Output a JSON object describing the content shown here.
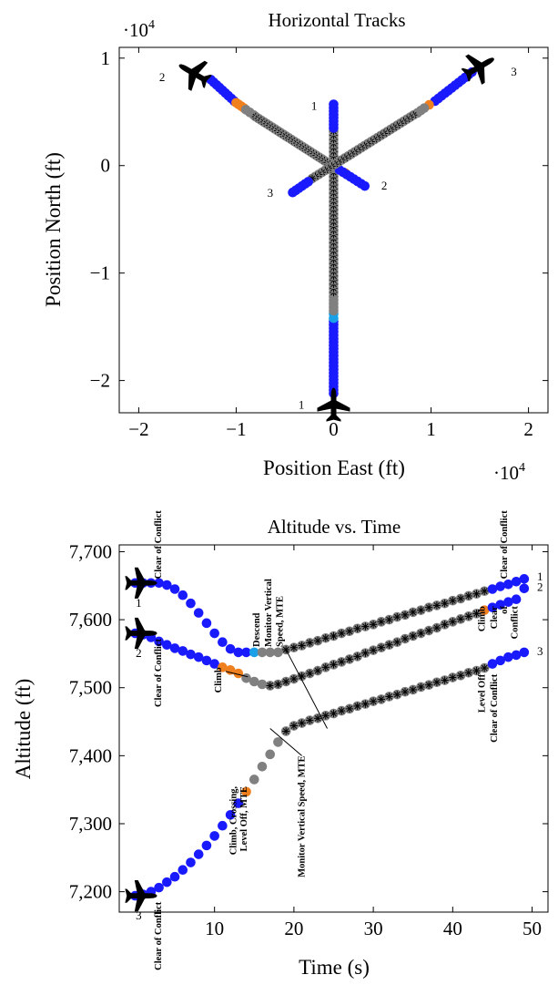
{
  "colors": {
    "clear": "#1a1aff",
    "advisory": "#f07f1e",
    "monitor": "#808080",
    "descend": "#1aa0e6",
    "marker": "#000000",
    "axis": "#000000"
  },
  "chart_data": [
    {
      "type": "scatter",
      "title": "Horizontal Tracks",
      "xlabel": "Position East (ft)",
      "ylabel": "Position North (ft)",
      "xlim": [
        -2.2,
        2.2
      ],
      "ylim": [
        -2.3,
        1.1
      ],
      "xticks": [
        -2,
        -1,
        0,
        1,
        2
      ],
      "yticks": [
        -2,
        -1,
        0,
        1
      ],
      "xtick_labels": [
        "−2",
        "−1",
        "0",
        "1",
        "2"
      ],
      "ytick_labels": [
        "−2",
        "−1",
        "0",
        "1"
      ],
      "x_multiplier": "·10",
      "y_multiplier": "·10",
      "multiplier_exp": "4",
      "grid": false,
      "units_scale": 10000,
      "tracks": [
        {
          "label": "1",
          "aircraft": {
            "x": 0.0,
            "y": -2.22,
            "heading": 0
          },
          "label_pos": {
            "x": -0.33,
            "y": -2.22
          },
          "end_label": "1",
          "end_label_pos": {
            "x": -0.2,
            "y": 0.56
          },
          "segments": [
            {
              "kind": "clear",
              "from": [
                0.0,
                -2.12
              ],
              "to": [
                0.0,
                -1.45
              ],
              "n": 22
            },
            {
              "kind": "descend",
              "from": [
                0.0,
                -1.42
              ],
              "to": [
                0.0,
                -1.38
              ],
              "n": 2
            },
            {
              "kind": "monitor",
              "from": [
                0.0,
                -1.35
              ],
              "to": [
                0.0,
                -1.22
              ],
              "n": 5
            },
            {
              "kind": "marker",
              "from": [
                0.0,
                -1.18
              ],
              "to": [
                0.0,
                0.32
              ],
              "n": 40
            },
            {
              "kind": "clear",
              "from": [
                0.0,
                0.35
              ],
              "to": [
                0.0,
                0.57
              ],
              "n": 8
            }
          ]
        },
        {
          "label": "2",
          "aircraft": {
            "x": -1.44,
            "y": 0.86,
            "heading": -60
          },
          "label_pos": {
            "x": -1.76,
            "y": 0.83
          },
          "end_label": "2",
          "end_label_pos": {
            "x": 0.52,
            "y": -0.18
          },
          "segments": [
            {
              "kind": "clear",
              "from": [
                -1.26,
                0.8
              ],
              "to": [
                -1.02,
                0.6
              ],
              "n": 9
            },
            {
              "kind": "advisory",
              "from": [
                -1.0,
                0.585
              ],
              "to": [
                -0.92,
                0.535
              ],
              "n": 4
            },
            {
              "kind": "monitor",
              "from": [
                -0.9,
                0.52
              ],
              "to": [
                -0.82,
                0.47
              ],
              "n": 3
            },
            {
              "kind": "marker",
              "from": [
                -0.8,
                0.455
              ],
              "to": [
                0.02,
                -0.02
              ],
              "n": 30
            },
            {
              "kind": "advisory",
              "from": [
                0.12,
                -0.07
              ],
              "to": [
                0.12,
                -0.07
              ],
              "n": 1
            },
            {
              "kind": "clear",
              "from": [
                0.06,
                -0.04
              ],
              "to": [
                0.32,
                -0.19
              ],
              "n": 8
            }
          ]
        },
        {
          "label": "3",
          "aircraft": {
            "x": 1.5,
            "y": 0.92,
            "heading": 60
          },
          "label_pos": {
            "x": 1.85,
            "y": 0.88
          },
          "end_label": "3",
          "end_label_pos": {
            "x": -0.65,
            "y": -0.25
          },
          "segments": [
            {
              "kind": "clear",
              "from": [
                1.42,
                0.87
              ],
              "to": [
                1.04,
                0.6
              ],
              "n": 12
            },
            {
              "kind": "advisory",
              "from": [
                0.98,
                0.565
              ],
              "to": [
                0.98,
                0.565
              ],
              "n": 1
            },
            {
              "kind": "monitor",
              "from": [
                0.93,
                0.535
              ],
              "to": [
                0.86,
                0.49
              ],
              "n": 3
            },
            {
              "kind": "marker",
              "from": [
                0.82,
                0.47
              ],
              "to": [
                -0.22,
                -0.12
              ],
              "n": 32
            },
            {
              "kind": "clear",
              "from": [
                -0.26,
                -0.15
              ],
              "to": [
                -0.42,
                -0.25
              ],
              "n": 6
            }
          ]
        }
      ]
    },
    {
      "type": "scatter",
      "title": "Altitude vs. Time",
      "xlabel": "Time (s)",
      "ylabel": "Altitude (ft)",
      "xlim": [
        -2,
        52
      ],
      "ylim": [
        7170,
        7710
      ],
      "xticks": [
        10,
        20,
        30,
        40,
        50
      ],
      "yticks": [
        7200,
        7300,
        7400,
        7500,
        7600,
        7700
      ],
      "xtick_labels": [
        "10",
        "20",
        "30",
        "40",
        "50"
      ],
      "ytick_labels": [
        "7,200",
        "7,300",
        "7,400",
        "7,500",
        "7,600",
        "7,700"
      ],
      "grid": false,
      "series": [
        {
          "name": "1",
          "x": [
            0,
            1,
            2,
            3,
            4,
            5,
            6,
            7,
            8,
            9,
            10,
            11,
            12,
            13,
            14,
            15,
            16,
            17,
            18,
            19,
            20,
            21,
            22,
            23,
            24,
            25,
            26,
            27,
            28,
            29,
            30,
            31,
            32,
            33,
            34,
            35,
            36,
            37,
            38,
            39,
            40,
            41,
            42,
            43,
            44,
            45,
            46,
            47,
            48,
            49
          ],
          "y": [
            7654,
            7654,
            7654,
            7654,
            7651,
            7645,
            7636,
            7624,
            7610,
            7595,
            7580,
            7567,
            7557,
            7552,
            7552,
            7552,
            7552,
            7552,
            7552,
            7556,
            7559,
            7562,
            7566,
            7569,
            7573,
            7576,
            7580,
            7583,
            7587,
            7590,
            7593,
            7597,
            7600,
            7604,
            7607,
            7611,
            7614,
            7618,
            7621,
            7624,
            7628,
            7631,
            7635,
            7638,
            7642,
            7645,
            7649,
            7652,
            7656,
            7660
          ],
          "kinds": [
            "clear",
            "clear",
            "clear",
            "clear",
            "clear",
            "clear",
            "clear",
            "clear",
            "clear",
            "clear",
            "clear",
            "clear",
            "clear",
            "clear",
            "clear",
            "descend",
            "monitor",
            "monitor",
            "monitor",
            "marker",
            "marker",
            "marker",
            "marker",
            "marker",
            "marker",
            "marker",
            "marker",
            "marker",
            "marker",
            "marker",
            "marker",
            "marker",
            "marker",
            "marker",
            "marker",
            "marker",
            "marker",
            "marker",
            "marker",
            "marker",
            "marker",
            "marker",
            "marker",
            "marker",
            "marker",
            "clear",
            "clear",
            "clear",
            "clear",
            "clear"
          ]
        },
        {
          "name": "2",
          "x": [
            0,
            1,
            2,
            3,
            4,
            5,
            6,
            7,
            8,
            9,
            10,
            11,
            12,
            13,
            14,
            15,
            16,
            17,
            18,
            19,
            20,
            21,
            22,
            23,
            24,
            25,
            26,
            27,
            28,
            29,
            30,
            31,
            32,
            33,
            34,
            35,
            36,
            37,
            38,
            39,
            40,
            41,
            42,
            43,
            44,
            45,
            46,
            47,
            48,
            49
          ],
          "y": [
            7580,
            7578,
            7574,
            7568,
            7563,
            7558,
            7554,
            7549,
            7545,
            7540,
            7535,
            7530,
            7526,
            7521,
            7514,
            7509,
            7505,
            7503,
            7505,
            7509,
            7513,
            7517,
            7521,
            7525,
            7530,
            7534,
            7538,
            7542,
            7546,
            7551,
            7555,
            7559,
            7563,
            7567,
            7572,
            7576,
            7580,
            7584,
            7588,
            7593,
            7597,
            7601,
            7605,
            7609,
            7614,
            7618,
            7622,
            7626,
            7630,
            7646
          ],
          "kinds": [
            "clear",
            "clear",
            "clear",
            "clear",
            "clear",
            "clear",
            "clear",
            "clear",
            "clear",
            "clear",
            "clear",
            "advisory",
            "advisory",
            "advisory",
            "monitor",
            "monitor",
            "monitor",
            "marker",
            "marker",
            "marker",
            "marker",
            "marker",
            "marker",
            "marker",
            "marker",
            "marker",
            "marker",
            "marker",
            "marker",
            "marker",
            "marker",
            "marker",
            "marker",
            "marker",
            "marker",
            "marker",
            "marker",
            "marker",
            "marker",
            "marker",
            "marker",
            "marker",
            "marker",
            "marker",
            "advisory",
            "clear",
            "clear",
            "clear",
            "clear",
            "clear"
          ]
        },
        {
          "name": "3",
          "x": [
            0,
            1,
            2,
            3,
            4,
            5,
            6,
            7,
            8,
            9,
            10,
            11,
            12,
            13,
            14,
            15,
            16,
            17,
            18,
            19,
            20,
            21,
            22,
            23,
            24,
            25,
            26,
            27,
            28,
            29,
            30,
            31,
            32,
            33,
            34,
            35,
            36,
            37,
            38,
            39,
            40,
            41,
            42,
            43,
            44,
            45,
            46,
            47,
            48,
            49
          ],
          "y": [
            7194,
            7196,
            7200,
            7206,
            7214,
            7222,
            7232,
            7243,
            7255,
            7268,
            7282,
            7297,
            7313,
            7330,
            7347,
            7365,
            7384,
            7402,
            7420,
            7436,
            7444,
            7448,
            7452,
            7455,
            7459,
            7462,
            7466,
            7469,
            7473,
            7476,
            7480,
            7483,
            7487,
            7490,
            7494,
            7497,
            7501,
            7504,
            7508,
            7511,
            7515,
            7518,
            7522,
            7525,
            7529,
            7535,
            7540,
            7545,
            7548,
            7552
          ],
          "kinds": [
            "clear",
            "clear",
            "clear",
            "clear",
            "clear",
            "clear",
            "clear",
            "clear",
            "clear",
            "clear",
            "clear",
            "clear",
            "clear",
            "clear",
            "advisory",
            "monitor",
            "monitor",
            "monitor",
            "monitor",
            "marker",
            "marker",
            "marker",
            "marker",
            "marker",
            "marker",
            "marker",
            "marker",
            "marker",
            "marker",
            "marker",
            "marker",
            "marker",
            "marker",
            "marker",
            "marker",
            "marker",
            "marker",
            "marker",
            "marker",
            "marker",
            "marker",
            "marker",
            "marker",
            "marker",
            "marker",
            "clear",
            "clear",
            "clear",
            "clear",
            "clear"
          ]
        }
      ],
      "aircraft": [
        {
          "label": "1",
          "x": 0.8,
          "y": 7654
        },
        {
          "label": "2",
          "x": 0.8,
          "y": 7580
        },
        {
          "label": "3",
          "x": 0.8,
          "y": 7194
        }
      ],
      "annotations": [
        {
          "text": "Clear of Conflict",
          "at_x": 2.8,
          "at_y": 7660,
          "rotation": -90,
          "lead": "above",
          "id": "a1"
        },
        {
          "text": "Clear of Conflict",
          "at_x": 2.8,
          "at_y": 7572,
          "rotation": -90,
          "lead": "below",
          "id": "a2"
        },
        {
          "text": "Climb",
          "at_x": 10.4,
          "at_y": 7530,
          "rotation": -90,
          "lead": "below",
          "id": "a3"
        },
        {
          "text": "Descend",
          "at_x": 15.2,
          "at_y": 7560,
          "rotation": -90,
          "lead": "above",
          "id": "a4"
        },
        {
          "text": "Monitor  Vertical",
          "at_x": 16.7,
          "at_y": 7560,
          "rotation": -90,
          "lead": "above",
          "id": "a5"
        },
        {
          "text": "Speed, MTE",
          "at_x": 18.1,
          "at_y": 7560,
          "rotation": -90,
          "lead": "above",
          "id": "a6"
        },
        {
          "text": "Climb, Crossing,",
          "at_x": 12.3,
          "at_y": 7355,
          "rotation": -90,
          "lead": "below",
          "id": "a7"
        },
        {
          "text": "Level Off, MTE",
          "at_x": 13.6,
          "at_y": 7355,
          "rotation": -90,
          "lead": "below",
          "id": "a8"
        },
        {
          "text": "Monitor Vertical Speed, MTE",
          "at_x": 20.9,
          "at_y": 7400,
          "rotation": -90,
          "lead": "below",
          "id": "a9"
        },
        {
          "text": "Clear of Conflict",
          "at_x": 2.8,
          "at_y": 7185,
          "rotation": -90,
          "lead": "below",
          "id": "a10"
        },
        {
          "text": "Clear of Conflict",
          "at_x": 46.4,
          "at_y": 7660,
          "rotation": -90,
          "lead": "above",
          "id": "a11"
        },
        {
          "text": "Climb",
          "at_x": 43.6,
          "at_y": 7620,
          "rotation": -90,
          "lead": "below",
          "id": "a12"
        },
        {
          "text": "Clear",
          "at_x": 45.1,
          "at_y": 7620,
          "rotation": -90,
          "lead": "below",
          "id": "a13"
        },
        {
          "text": "of",
          "at_x": 46.4,
          "at_y": 7620,
          "rotation": -90,
          "lead": "below",
          "id": "a14"
        },
        {
          "text": "Conflict",
          "at_x": 47.7,
          "at_y": 7620,
          "rotation": -90,
          "lead": "below",
          "id": "a15"
        },
        {
          "text": "Level Off",
          "at_x": 43.6,
          "at_y": 7520,
          "rotation": -90,
          "lead": "below",
          "id": "a16"
        },
        {
          "text": "Clear of Conflict",
          "at_x": 45.1,
          "at_y": 7520,
          "rotation": -90,
          "lead": "below",
          "id": "a17"
        }
      ],
      "end_labels": [
        {
          "text": "1",
          "x": 51.0,
          "y": 7663
        },
        {
          "text": "2",
          "x": 51.0,
          "y": 7648
        },
        {
          "text": "3",
          "x": 51.0,
          "y": 7553
        }
      ]
    }
  ]
}
